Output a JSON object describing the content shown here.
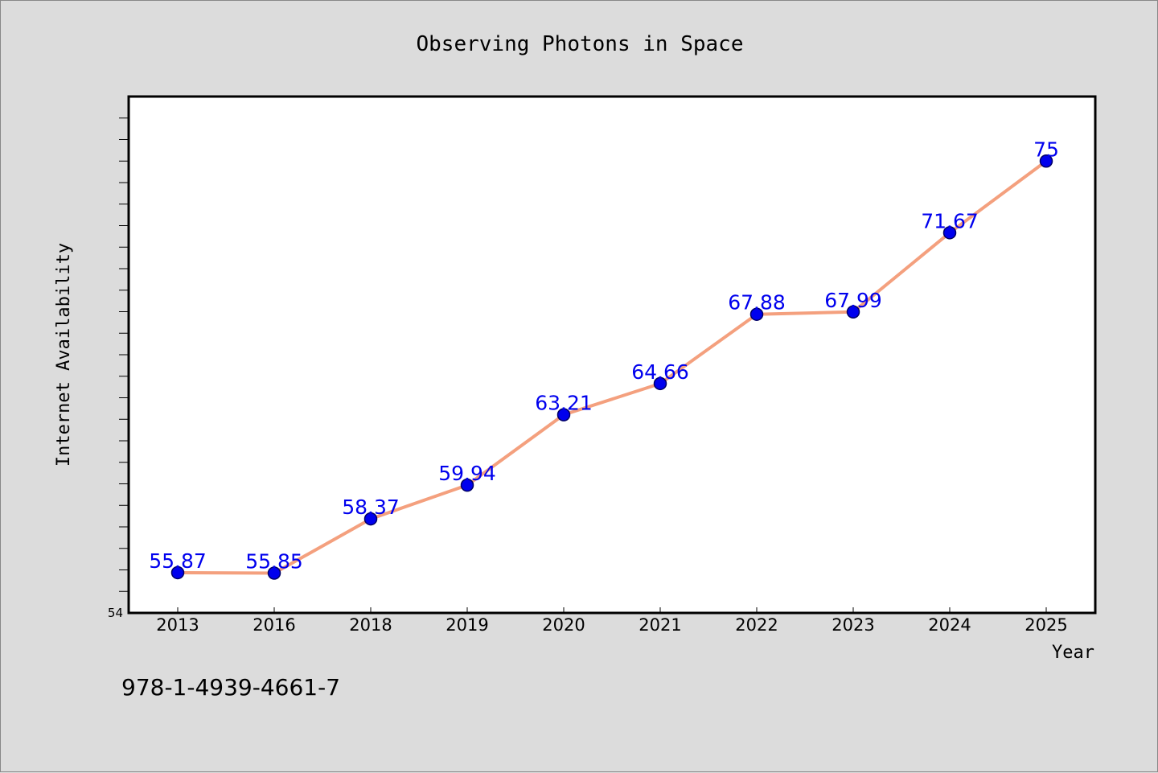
{
  "chart_data": {
    "type": "line",
    "title": "Observing Photons in Space",
    "xlabel": "Year",
    "ylabel": "Internet Availability",
    "categories": [
      "2013",
      "2016",
      "2018",
      "2019",
      "2020",
      "2021",
      "2022",
      "2023",
      "2024",
      "2025"
    ],
    "series": [
      {
        "values": [
          55.87,
          55.85,
          58.37,
          59.94,
          63.21,
          64.66,
          67.88,
          67.99,
          71.67,
          75
        ],
        "data_labels": [
          "55.87",
          "55.85",
          "58.37",
          "59.94",
          "63.21",
          "64.66",
          "67.88",
          "67.99",
          "71.67",
          "75"
        ]
      }
    ],
    "ylim": [
      54,
      78
    ],
    "y_tick_labels": [
      "54"
    ],
    "grid": false,
    "legend": "none",
    "colors": {
      "line": "#f4a07e",
      "marker": "#0000ee",
      "marker_edge": "#000066",
      "data_label": "#0000ee",
      "plot_background": "#ffffff",
      "page_background": "#dcdcdc"
    }
  },
  "footer": {
    "isbn": "978-1-4939-4661-7"
  }
}
